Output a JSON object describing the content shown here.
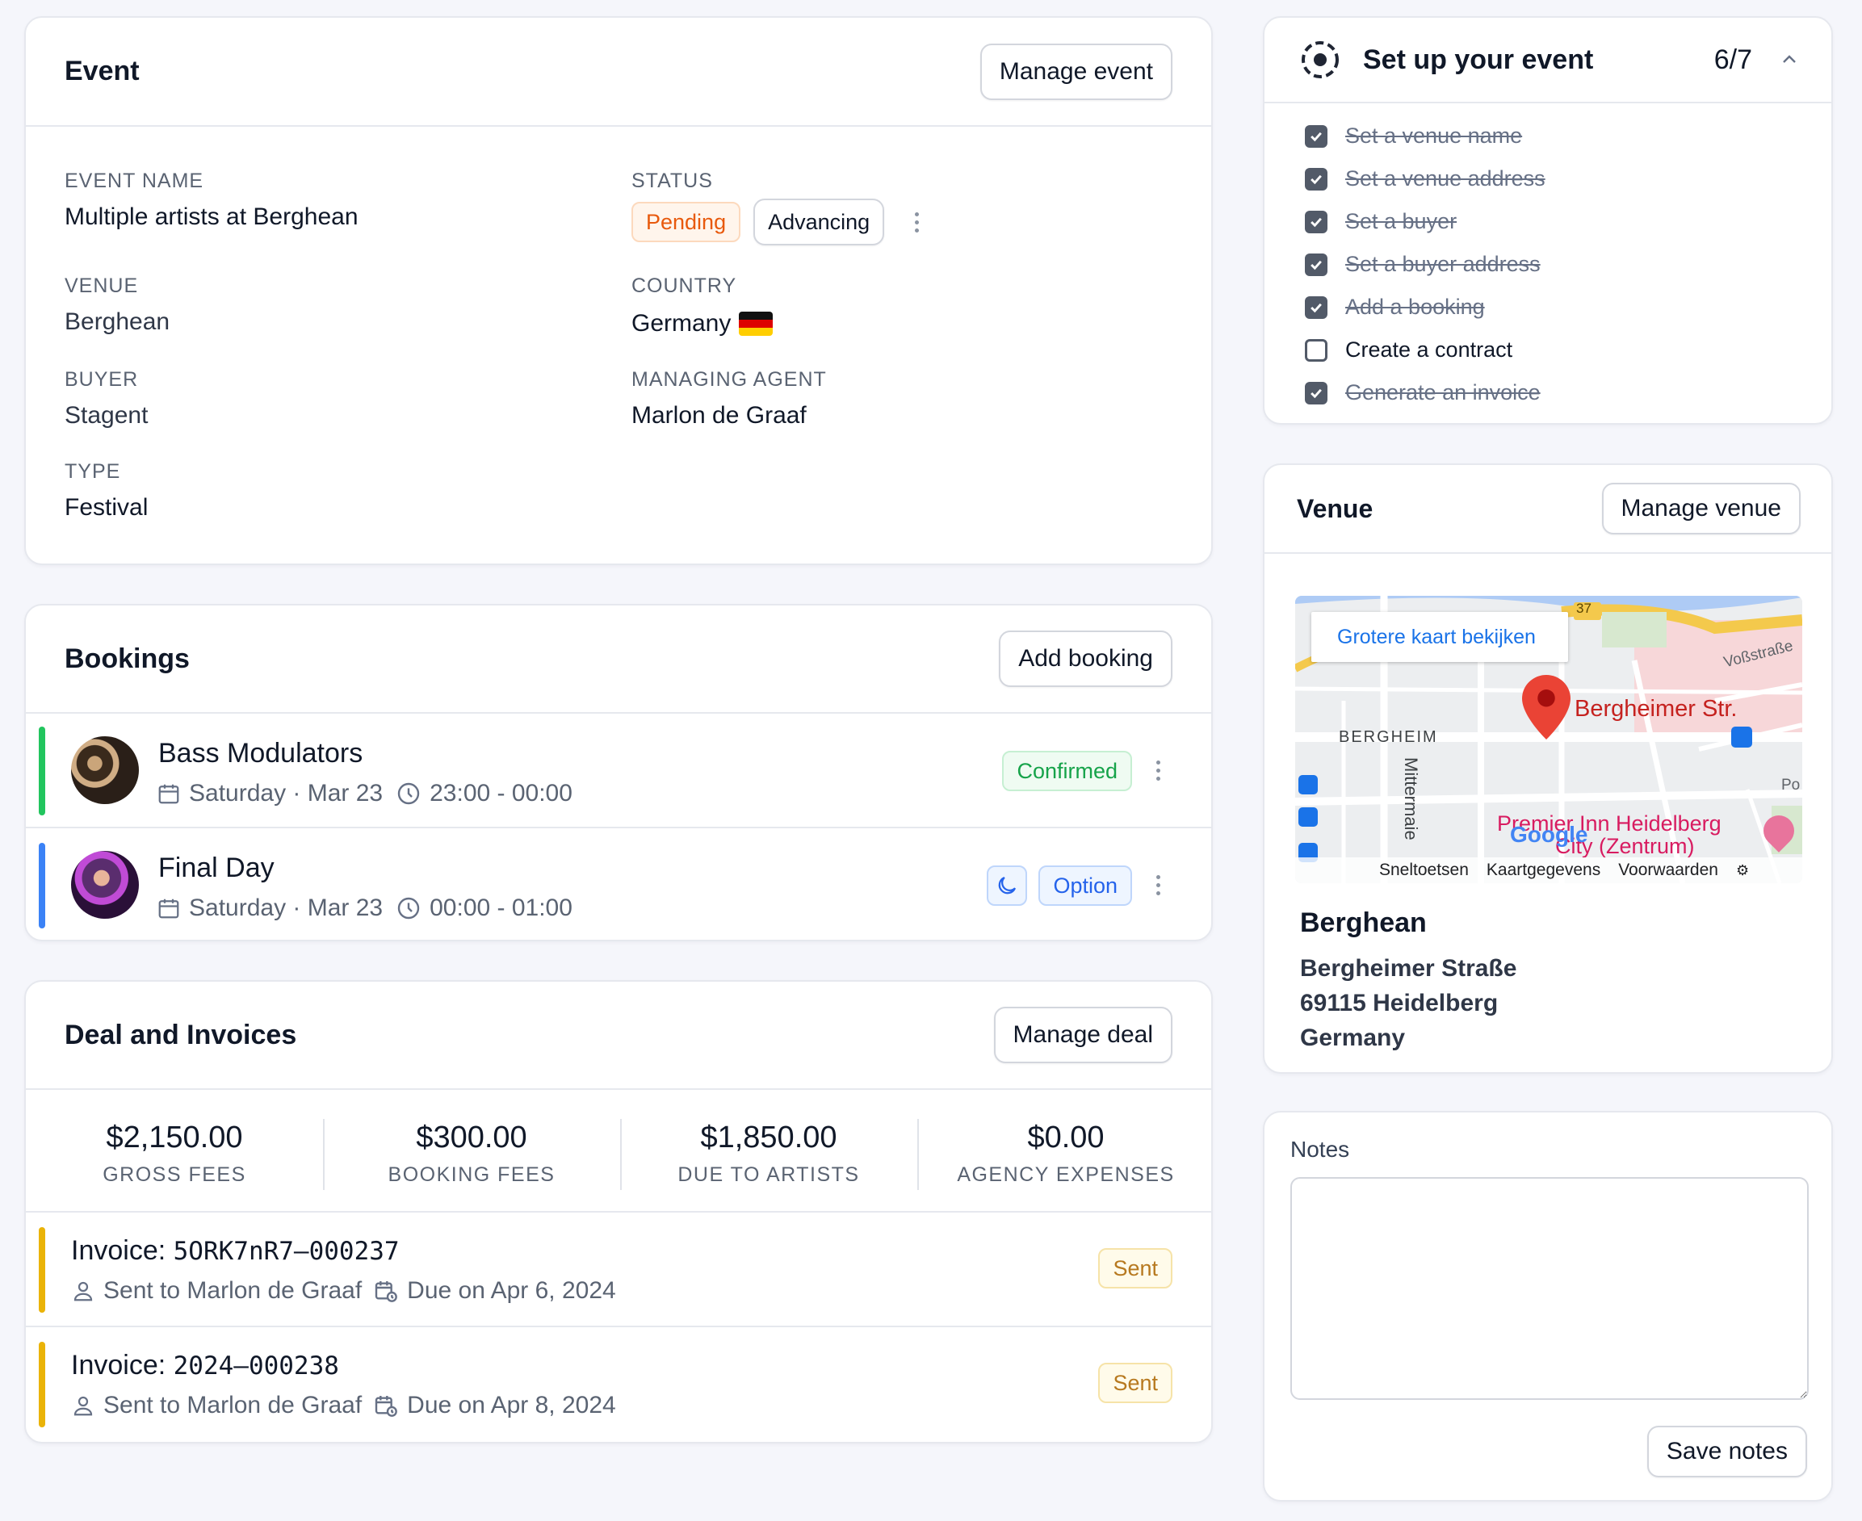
{
  "event": {
    "title": "Event",
    "manage_label": "Manage event",
    "name_label": "EVENT NAME",
    "name_value": "Multiple artists at Berghean",
    "status_label": "STATUS",
    "status_badge": "Pending",
    "status_button": "Advancing",
    "venue_label": "VENUE",
    "venue_value": "Berghean",
    "country_label": "COUNTRY",
    "country_value": "Germany",
    "buyer_label": "BUYER",
    "buyer_value": "Stagent",
    "agent_label": "MANAGING AGENT",
    "agent_value": "Marlon de Graaf",
    "type_label": "TYPE",
    "type_value": "Festival"
  },
  "bookings": {
    "title": "Bookings",
    "add_label": "Add booking",
    "items": [
      {
        "artist": "Bass Modulators",
        "date": "Saturday · Mar 23",
        "time": "23:00 - 00:00",
        "status": "Confirmed",
        "bar_color": "#22c55e"
      },
      {
        "artist": "Final Day",
        "date": "Saturday · Mar 23",
        "time": "00:00 - 01:00",
        "status": "Option",
        "bar_color": "#3b82f6"
      }
    ]
  },
  "deal": {
    "title": "Deal and Invoices",
    "manage_label": "Manage deal",
    "stats": [
      {
        "amount": "$2,150.00",
        "label": "GROSS FEES"
      },
      {
        "amount": "$300.00",
        "label": "BOOKING FEES"
      },
      {
        "amount": "$1,850.00",
        "label": "DUE TO ARTISTS"
      },
      {
        "amount": "$0.00",
        "label": "AGENCY EXPENSES"
      }
    ],
    "invoices": [
      {
        "prefix": "Invoice: ",
        "number": "5ORK7nR7–000237",
        "sent_to": "Sent to Marlon de Graaf",
        "due": "Due on Apr 6, 2024",
        "status": "Sent"
      },
      {
        "prefix": "Invoice: ",
        "number": "2024–000238",
        "sent_to": "Sent to Marlon de Graaf",
        "due": "Due on Apr 8, 2024",
        "status": "Sent"
      }
    ]
  },
  "setup": {
    "title": "Set up your event",
    "progress": "6/7",
    "tasks": [
      {
        "label": "Set a venue name",
        "done": true
      },
      {
        "label": "Set a venue address",
        "done": true
      },
      {
        "label": "Set a buyer",
        "done": true
      },
      {
        "label": "Set a buyer address",
        "done": true
      },
      {
        "label": "Add a booking",
        "done": true
      },
      {
        "label": "Create a contract",
        "done": false
      },
      {
        "label": "Generate an invoice",
        "done": true
      }
    ]
  },
  "venue": {
    "title": "Venue",
    "manage_label": "Manage venue",
    "map": {
      "larger_map": "Grotere kaart bekijken",
      "road_badge": "37",
      "street_vos": "Voßstraße",
      "pin_label": "Bergheimer Str.",
      "district": "BERGHEIM",
      "street_mitter": "Mittermaie",
      "hotel": "Premier Inn Heidelberg",
      "hotel2": "City (Zentrum)",
      "po": "Po",
      "google": "Google",
      "shortcuts": "Sneltoetsen",
      "mapdata": "Kaartgegevens",
      "terms": "Voorwaarden"
    },
    "name": "Berghean",
    "street": "Bergheimer Straße",
    "city": "69115 Heidelberg",
    "country": "Germany"
  },
  "notes": {
    "label": "Notes",
    "value": "",
    "save_label": "Save notes"
  },
  "colors": {
    "pending": "#e8590c",
    "confirmed": "#16a34a",
    "option": "#2563eb",
    "sent": "#b7791f",
    "invoice_bar": "#eab308"
  }
}
